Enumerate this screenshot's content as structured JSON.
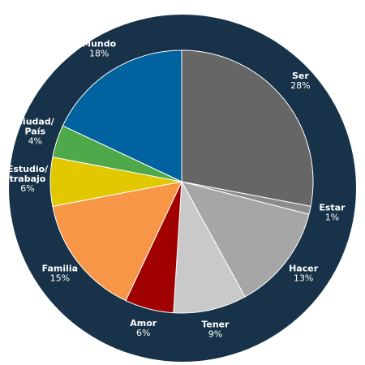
{
  "chart_data": {
    "type": "pie",
    "categories": [
      "Ser",
      "Estar",
      "Hacer",
      "Tener",
      "Amor",
      "Familia",
      "Estudio/\ntrabajo",
      "Ciudad/\nPaís",
      "Mundo"
    ],
    "values": [
      28,
      1,
      13,
      9,
      6,
      15,
      6,
      4,
      18
    ],
    "value_labels": [
      "28%",
      "1%",
      "13%",
      "9%",
      "6%",
      "15%",
      "6%",
      "4%",
      "18%"
    ],
    "colors": [
      "#666666",
      "#8c8c8c",
      "#a6a6a6",
      "#c9c9c9",
      "#a00000",
      "#f79646",
      "#e2c800",
      "#4ea94a",
      "#00629e"
    ]
  }
}
